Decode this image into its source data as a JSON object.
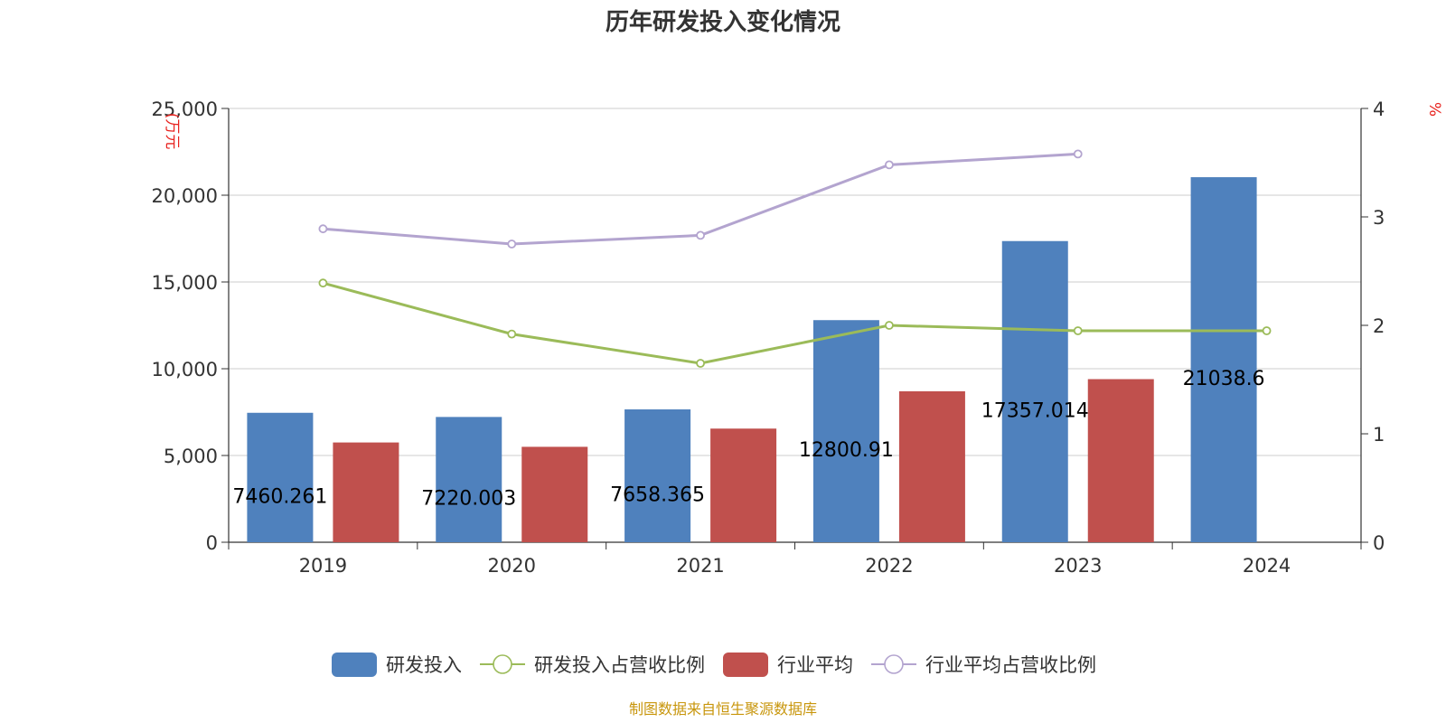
{
  "chart_data": {
    "type": "bar",
    "title": "历年研发投入变化情况",
    "categories": [
      "2019",
      "2020",
      "2021",
      "2022",
      "2023",
      "2024"
    ],
    "y_left": {
      "unit_label": "(万元",
      "min": 0,
      "max": 25000,
      "ticks": [
        0,
        5000,
        10000,
        15000,
        20000,
        25000
      ],
      "tick_labels": [
        "0",
        "5,000",
        "10,000",
        "15,000",
        "20,000",
        "25,000"
      ]
    },
    "y_right": {
      "unit_label": "%",
      "min": 0,
      "max": 4,
      "ticks": [
        0,
        1,
        2,
        3,
        4
      ],
      "tick_labels": [
        "0",
        "1",
        "2",
        "3",
        "4"
      ]
    },
    "grid": true,
    "legend_position": "bottom-center",
    "series": [
      {
        "name": "研发投入",
        "type": "bar",
        "axis": "left",
        "color": "#4f81bd",
        "values": [
          7460.261,
          7220.003,
          7658.365,
          12800.91,
          17357.014,
          21038.6
        ],
        "labels": [
          "7460.261",
          "7220.003",
          "7658.365",
          "12800.91",
          "17357.014",
          "21038.6"
        ]
      },
      {
        "name": "研发投入占营收比例",
        "type": "line",
        "axis": "right",
        "color": "#9bbb59",
        "values": [
          2.39,
          1.92,
          1.65,
          2.0,
          1.95,
          1.95
        ]
      },
      {
        "name": "行业平均",
        "type": "bar",
        "axis": "left",
        "color": "#c0504d",
        "values": [
          5750,
          5500,
          6550,
          8700,
          9400,
          null
        ]
      },
      {
        "name": "行业平均占营收比例",
        "type": "line",
        "axis": "right",
        "color": "#b3a4cf",
        "values": [
          2.89,
          2.75,
          2.83,
          3.48,
          3.58,
          null
        ]
      }
    ]
  },
  "footer": {
    "source": "制图数据来自恒生聚源数据库"
  }
}
